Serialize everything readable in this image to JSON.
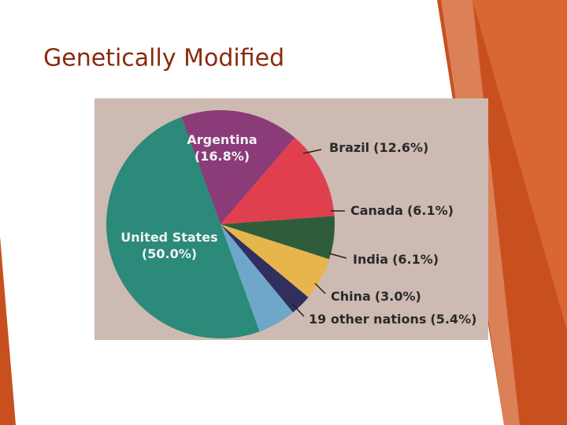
{
  "chart_data": {
    "type": "pie",
    "title": "Genetically Modified",
    "categories": [
      "Argentina",
      "Brazil",
      "Canada",
      "India",
      "China",
      "19 other nations",
      "United States"
    ],
    "values": [
      16.8,
      12.6,
      6.1,
      6.1,
      3.0,
      5.4,
      50.0
    ],
    "value_labels": [
      "(16.8%)",
      "(12.6%)",
      "(6.1%)",
      "(6.1%)",
      "(3.0%)",
      "(5.4%)",
      "(50.0%)"
    ],
    "colors": [
      "#8a3b78",
      "#e0404e",
      "#2f5d3b",
      "#e6b64c",
      "#302f5e",
      "#6ea7c9",
      "#2b8a79"
    ]
  }
}
